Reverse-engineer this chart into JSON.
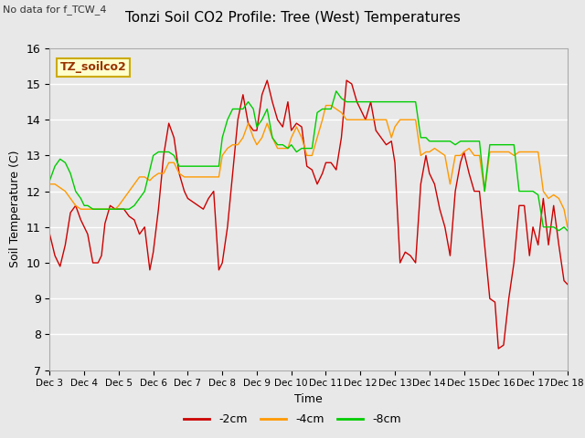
{
  "title": "Tonzi Soil CO2 Profile: Tree (West) Temperatures",
  "subtitle": "No data for f_TCW_4",
  "ylabel": "Soil Temperature (C)",
  "xlabel": "Time",
  "ylim": [
    7.0,
    16.0
  ],
  "yticks": [
    7.0,
    8.0,
    9.0,
    10.0,
    11.0,
    12.0,
    13.0,
    14.0,
    15.0,
    16.0
  ],
  "xtick_labels": [
    "Dec 3",
    "Dec 4",
    "Dec 5",
    "Dec 6",
    "Dec 7",
    "Dec 8",
    "Dec 9",
    "Dec 10",
    "Dec 11",
    "Dec 12",
    "Dec 13",
    "Dec 14",
    "Dec 15",
    "Dec 16",
    "Dec 17",
    "Dec 18"
  ],
  "bg_color": "#e8e8e8",
  "legend_box_label": "TZ_soilco2",
  "legend_box_color": "#ffffcc",
  "legend_box_edgecolor": "#ccaa00",
  "series": {
    "-2cm": {
      "color": "#cc0000",
      "x": [
        0,
        0.15,
        0.3,
        0.45,
        0.6,
        0.75,
        0.9,
        1.0,
        1.1,
        1.25,
        1.4,
        1.5,
        1.6,
        1.75,
        1.9,
        2.0,
        2.15,
        2.3,
        2.45,
        2.6,
        2.75,
        2.9,
        3.0,
        3.15,
        3.3,
        3.45,
        3.6,
        3.75,
        3.9,
        4.0,
        4.15,
        4.3,
        4.45,
        4.6,
        4.75,
        4.9,
        5.0,
        5.15,
        5.3,
        5.45,
        5.6,
        5.75,
        5.9,
        6.0,
        6.15,
        6.3,
        6.45,
        6.6,
        6.75,
        6.9,
        7.0,
        7.15,
        7.3,
        7.45,
        7.6,
        7.75,
        7.9,
        8.0,
        8.15,
        8.3,
        8.45,
        8.6,
        8.75,
        8.9,
        9.0,
        9.15,
        9.3,
        9.45,
        9.6,
        9.75,
        9.9,
        10.0,
        10.15,
        10.3,
        10.45,
        10.6,
        10.75,
        10.9,
        11.0,
        11.15,
        11.3,
        11.45,
        11.6,
        11.75,
        11.9,
        12.0,
        12.15,
        12.3,
        12.45,
        12.6,
        12.75,
        12.9,
        13.0,
        13.15,
        13.3,
        13.45,
        13.6,
        13.75,
        13.9,
        14.0,
        14.15,
        14.3,
        14.45,
        14.6,
        14.75,
        14.9,
        15.0
      ],
      "y": [
        10.8,
        10.2,
        9.9,
        10.5,
        11.4,
        11.6,
        11.2,
        11.0,
        10.8,
        10.0,
        10.0,
        10.2,
        11.1,
        11.6,
        11.5,
        11.5,
        11.5,
        11.3,
        11.2,
        10.8,
        11.0,
        9.8,
        10.3,
        11.5,
        13.0,
        13.9,
        13.5,
        12.5,
        12.0,
        11.8,
        11.7,
        11.6,
        11.5,
        11.8,
        12.0,
        9.8,
        10.0,
        11.0,
        12.5,
        14.0,
        14.7,
        13.9,
        13.7,
        13.7,
        14.7,
        15.1,
        14.5,
        14.0,
        13.8,
        14.5,
        13.7,
        13.9,
        13.8,
        12.7,
        12.6,
        12.2,
        12.5,
        12.8,
        12.8,
        12.6,
        13.5,
        15.1,
        15.0,
        14.5,
        14.3,
        14.0,
        14.5,
        13.7,
        13.5,
        13.3,
        13.4,
        12.8,
        10.0,
        10.3,
        10.2,
        10.0,
        12.2,
        13.0,
        12.5,
        12.2,
        11.5,
        11.0,
        10.2,
        12.0,
        12.8,
        13.1,
        12.5,
        12.0,
        12.0,
        10.5,
        9.0,
        8.9,
        7.6,
        7.7,
        9.0,
        10.0,
        11.6,
        11.6,
        10.2,
        11.0,
        10.5,
        11.8,
        10.5,
        11.6,
        10.5,
        9.5,
        9.4
      ]
    },
    "-4cm": {
      "color": "#ff9900",
      "x": [
        0,
        0.15,
        0.3,
        0.45,
        0.6,
        0.75,
        0.9,
        1.0,
        1.1,
        1.25,
        1.4,
        1.5,
        1.6,
        1.75,
        1.9,
        2.0,
        2.15,
        2.3,
        2.45,
        2.6,
        2.75,
        2.9,
        3.0,
        3.15,
        3.3,
        3.45,
        3.6,
        3.75,
        3.9,
        4.0,
        4.15,
        4.3,
        4.45,
        4.6,
        4.75,
        4.9,
        5.0,
        5.15,
        5.3,
        5.45,
        5.6,
        5.75,
        5.9,
        6.0,
        6.15,
        6.3,
        6.45,
        6.6,
        6.75,
        6.9,
        7.0,
        7.15,
        7.3,
        7.45,
        7.6,
        7.75,
        7.9,
        8.0,
        8.15,
        8.3,
        8.45,
        8.6,
        8.75,
        8.9,
        9.0,
        9.15,
        9.3,
        9.45,
        9.6,
        9.75,
        9.9,
        10.0,
        10.15,
        10.3,
        10.45,
        10.6,
        10.75,
        10.9,
        11.0,
        11.15,
        11.3,
        11.45,
        11.6,
        11.75,
        11.9,
        12.0,
        12.15,
        12.3,
        12.45,
        12.6,
        12.75,
        12.9,
        13.0,
        13.15,
        13.3,
        13.45,
        13.6,
        13.75,
        13.9,
        14.0,
        14.15,
        14.3,
        14.45,
        14.6,
        14.75,
        14.9,
        15.0
      ],
      "y": [
        12.2,
        12.2,
        12.1,
        12.0,
        11.8,
        11.6,
        11.5,
        11.5,
        11.5,
        11.5,
        11.5,
        11.5,
        11.5,
        11.5,
        11.5,
        11.6,
        11.8,
        12.0,
        12.2,
        12.4,
        12.4,
        12.3,
        12.4,
        12.5,
        12.5,
        12.8,
        12.8,
        12.5,
        12.4,
        12.4,
        12.4,
        12.4,
        12.4,
        12.4,
        12.4,
        12.4,
        13.0,
        13.2,
        13.3,
        13.3,
        13.5,
        13.9,
        13.5,
        13.3,
        13.5,
        13.9,
        13.5,
        13.2,
        13.2,
        13.2,
        13.5,
        13.8,
        13.5,
        13.0,
        13.0,
        13.5,
        14.0,
        14.4,
        14.4,
        14.3,
        14.2,
        14.0,
        14.0,
        14.0,
        14.0,
        14.0,
        14.0,
        14.0,
        14.0,
        14.0,
        13.5,
        13.8,
        14.0,
        14.0,
        14.0,
        14.0,
        13.0,
        13.1,
        13.1,
        13.2,
        13.1,
        13.0,
        12.2,
        13.0,
        13.0,
        13.1,
        13.2,
        13.0,
        13.0,
        12.0,
        13.1,
        13.1,
        13.1,
        13.1,
        13.1,
        13.0,
        13.1,
        13.1,
        13.1,
        13.1,
        13.1,
        12.0,
        11.8,
        11.9,
        11.8,
        11.5,
        11.0
      ]
    },
    "-8cm": {
      "color": "#00cc00",
      "x": [
        0,
        0.15,
        0.3,
        0.45,
        0.6,
        0.75,
        0.9,
        1.0,
        1.1,
        1.25,
        1.4,
        1.5,
        1.6,
        1.75,
        1.9,
        2.0,
        2.15,
        2.3,
        2.45,
        2.6,
        2.75,
        2.9,
        3.0,
        3.15,
        3.3,
        3.45,
        3.6,
        3.75,
        3.9,
        4.0,
        4.15,
        4.3,
        4.45,
        4.6,
        4.75,
        4.9,
        5.0,
        5.15,
        5.3,
        5.45,
        5.6,
        5.75,
        5.9,
        6.0,
        6.15,
        6.3,
        6.45,
        6.6,
        6.75,
        6.9,
        7.0,
        7.15,
        7.3,
        7.45,
        7.6,
        7.75,
        7.9,
        8.0,
        8.15,
        8.3,
        8.45,
        8.6,
        8.75,
        8.9,
        9.0,
        9.15,
        9.3,
        9.45,
        9.6,
        9.75,
        9.9,
        10.0,
        10.15,
        10.3,
        10.45,
        10.6,
        10.75,
        10.9,
        11.0,
        11.15,
        11.3,
        11.45,
        11.6,
        11.75,
        11.9,
        12.0,
        12.15,
        12.3,
        12.45,
        12.6,
        12.75,
        12.9,
        13.0,
        13.15,
        13.3,
        13.45,
        13.6,
        13.75,
        13.9,
        14.0,
        14.15,
        14.3,
        14.45,
        14.6,
        14.75,
        14.9,
        15.0
      ],
      "y": [
        12.3,
        12.7,
        12.9,
        12.8,
        12.5,
        12.0,
        11.8,
        11.6,
        11.6,
        11.5,
        11.5,
        11.5,
        11.5,
        11.5,
        11.5,
        11.5,
        11.5,
        11.5,
        11.6,
        11.8,
        12.0,
        12.6,
        13.0,
        13.1,
        13.1,
        13.1,
        13.0,
        12.7,
        12.7,
        12.7,
        12.7,
        12.7,
        12.7,
        12.7,
        12.7,
        12.7,
        13.5,
        14.0,
        14.3,
        14.3,
        14.3,
        14.5,
        14.3,
        13.8,
        14.0,
        14.3,
        13.5,
        13.3,
        13.3,
        13.2,
        13.3,
        13.1,
        13.2,
        13.2,
        13.2,
        14.2,
        14.3,
        14.3,
        14.3,
        14.8,
        14.6,
        14.5,
        14.5,
        14.5,
        14.5,
        14.5,
        14.5,
        14.5,
        14.5,
        14.5,
        14.5,
        14.5,
        14.5,
        14.5,
        14.5,
        14.5,
        13.5,
        13.5,
        13.4,
        13.4,
        13.4,
        13.4,
        13.4,
        13.3,
        13.4,
        13.4,
        13.4,
        13.4,
        13.4,
        12.0,
        13.3,
        13.3,
        13.3,
        13.3,
        13.3,
        13.3,
        12.0,
        12.0,
        12.0,
        12.0,
        11.9,
        11.0,
        11.0,
        11.0,
        10.9,
        11.0,
        10.9
      ]
    }
  }
}
